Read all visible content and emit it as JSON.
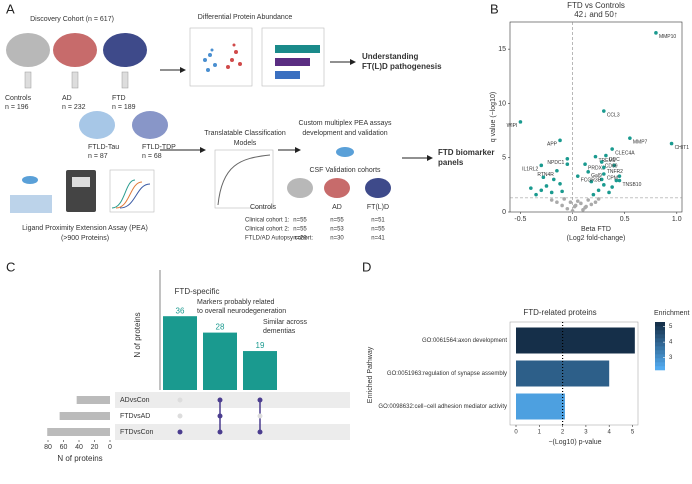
{
  "panel_labels": [
    "A",
    "B",
    "C",
    "D"
  ],
  "panel_a": {
    "discovery_title": "Discovery Cohort (n = 617)",
    "groups": [
      {
        "label": "Controls",
        "n": "n = 196"
      },
      {
        "label": "AD",
        "n": "n = 232"
      },
      {
        "label": "FTD",
        "n": "n = 189"
      }
    ],
    "subgroups": [
      {
        "label": "FTLD-Tau",
        "n": "n = 87"
      },
      {
        "label": "FTLD-TDP",
        "n": "n = 68"
      }
    ],
    "dpa_title": "Differential Protein Abundance",
    "understanding": [
      "Understanding",
      "FT(L)D pathogenesis"
    ],
    "pea": [
      "Ligand Proximity Extension Assay (PEA)",
      "(>900 Proteins)"
    ],
    "models": [
      "Translatable Classification",
      "Models"
    ],
    "custom": [
      "Custom multiplex PEA assays",
      "development and validation"
    ],
    "csf_title": "CSF Validation cohorts",
    "csf_groups": [
      "Controls",
      "AD",
      "FT(L)D"
    ],
    "csf_rows": [
      [
        "Clinical cohort 1:",
        "n=55",
        "n=55",
        "n=51"
      ],
      [
        "Clinical cohort 2:",
        "n=55",
        "n=53",
        "n=55"
      ],
      [
        "FTLD/AD Autopsy cohort:",
        "n=29",
        "n=30",
        "n=41"
      ]
    ],
    "biomarker": [
      "FTD biomarker",
      "panels"
    ]
  },
  "chart_data": [
    {
      "type": "scatter",
      "title": "FTD vs Controls",
      "subtitle": "42↓ and 50↑",
      "xlabel": [
        "Beta FTD",
        "(Log2 fold-change)"
      ],
      "ylabel": "q value (−log10)",
      "xlim": [
        -0.6,
        1.05
      ],
      "ylim": [
        0,
        17.5
      ],
      "xticks": [
        -0.5,
        {
          "value": 0,
          "label": "0.0"
        },
        0.5,
        {
          "value": 1,
          "label": "1.0"
        }
      ],
      "yticks": [
        0,
        5,
        10,
        15
      ],
      "hline": 1.3,
      "vline": 0,
      "series": [
        {
          "color": "#aaaaaa",
          "x": [
            -0.05,
            0.02,
            0.08,
            -0.1,
            0.12,
            0.05,
            -0.02,
            0.15,
            0.18,
            -0.15,
            0.1,
            0.22,
            0.0,
            -0.08,
            0.25,
            0.03,
            0.13,
            -0.2
          ],
          "values": [
            0.3,
            0.5,
            0.8,
            0.6,
            0.4,
            1.0,
            0.9,
            1.1,
            0.7,
            0.9,
            0.2,
            0.9,
            0.1,
            1.2,
            1.2,
            0.6,
            0.5,
            1.1
          ]
        },
        {
          "color": "#1a9a8f",
          "x": [
            -0.35,
            -0.3,
            -0.25,
            -0.2,
            -0.4,
            -0.18,
            -0.12,
            0.2,
            0.25,
            0.3,
            0.35,
            0.38,
            0.42,
            0.28,
            -0.28,
            0.18,
            0.45,
            -0.1,
            0.4,
            -0.05
          ],
          "values": [
            1.6,
            2.0,
            2.4,
            1.8,
            2.2,
            3.0,
            2.6,
            1.6,
            2.0,
            2.5,
            1.8,
            2.3,
            2.9,
            3.0,
            3.2,
            2.8,
            3.3,
            1.9,
            4.3,
            4.4
          ]
        },
        {
          "color": "#1a9a8f",
          "labels": [
            "MMP10",
            "CCL3",
            "WIPI",
            "MMP7",
            "CHIT1",
            "APP",
            "CLEC4A",
            "DDC",
            "NPDC1",
            "TREM1",
            "CD69",
            "IL1RL2",
            "PRDX1",
            "TNFR2",
            "RTN4R",
            "Gal9",
            "FCGR3B",
            "CPM",
            "TNSB10"
          ],
          "x": [
            0.8,
            0.3,
            -0.5,
            0.55,
            0.95,
            -0.12,
            0.38,
            0.32,
            -0.05,
            0.22,
            0.28,
            -0.3,
            0.12,
            0.3,
            -0.15,
            0.15,
            0.05,
            0.3,
            0.45
          ],
          "values": [
            16.5,
            9.3,
            8.3,
            6.8,
            6.3,
            6.6,
            5.8,
            5.2,
            4.9,
            5.1,
            4.6,
            4.3,
            4.4,
            4.1,
            3.8,
            3.7,
            3.3,
            3.5,
            2.9
          ]
        }
      ]
    },
    {
      "type": "upset",
      "title": "FTD-specific",
      "ylabel": "N of proteins",
      "ylim": [
        0,
        40
      ],
      "color": "#1a9a8f",
      "values": [
        36,
        28,
        19
      ],
      "annotations": [
        "Markers probably related to overall neurodegeneration",
        "Similar across dementias"
      ],
      "sets": [
        "ADvsCon",
        "FTDvsAD",
        "FTDvsCon"
      ],
      "set_sizes": [
        43,
        65,
        81
      ],
      "set_xlim": [
        0,
        80
      ],
      "set_xticks": [
        80,
        60,
        40,
        20,
        0
      ],
      "set_xlabel": "N of proteins",
      "matrix": [
        [
          false,
          false,
          true
        ],
        [
          true,
          true,
          true
        ],
        [
          true,
          false,
          true
        ]
      ],
      "dot_color": "#4b3d8f"
    },
    {
      "type": "barh",
      "title": "FTD-related proteins",
      "categories": [
        "GO:0061564:axon development",
        "GO:0051963:regulation of synapse assembly",
        "GO:0098632:cell−cell adhesion mediator activity"
      ],
      "values": [
        5.1,
        4.0,
        2.1
      ],
      "enrichment": [
        5.2,
        4.1,
        2.6
      ],
      "xlim": [
        0,
        5.3
      ],
      "xticks": [
        0,
        1,
        2,
        3,
        4,
        5
      ],
      "xlabel": "−(Log10) p-value",
      "ylabel": "Enriched Pathway",
      "vline": 2,
      "colorbar": {
        "title": "Enrichment",
        "lim": [
          2.2,
          5.3
        ],
        "ticks": [
          3,
          4,
          5
        ],
        "low": "#56b1f7",
        "high": "#132b43"
      }
    }
  ]
}
